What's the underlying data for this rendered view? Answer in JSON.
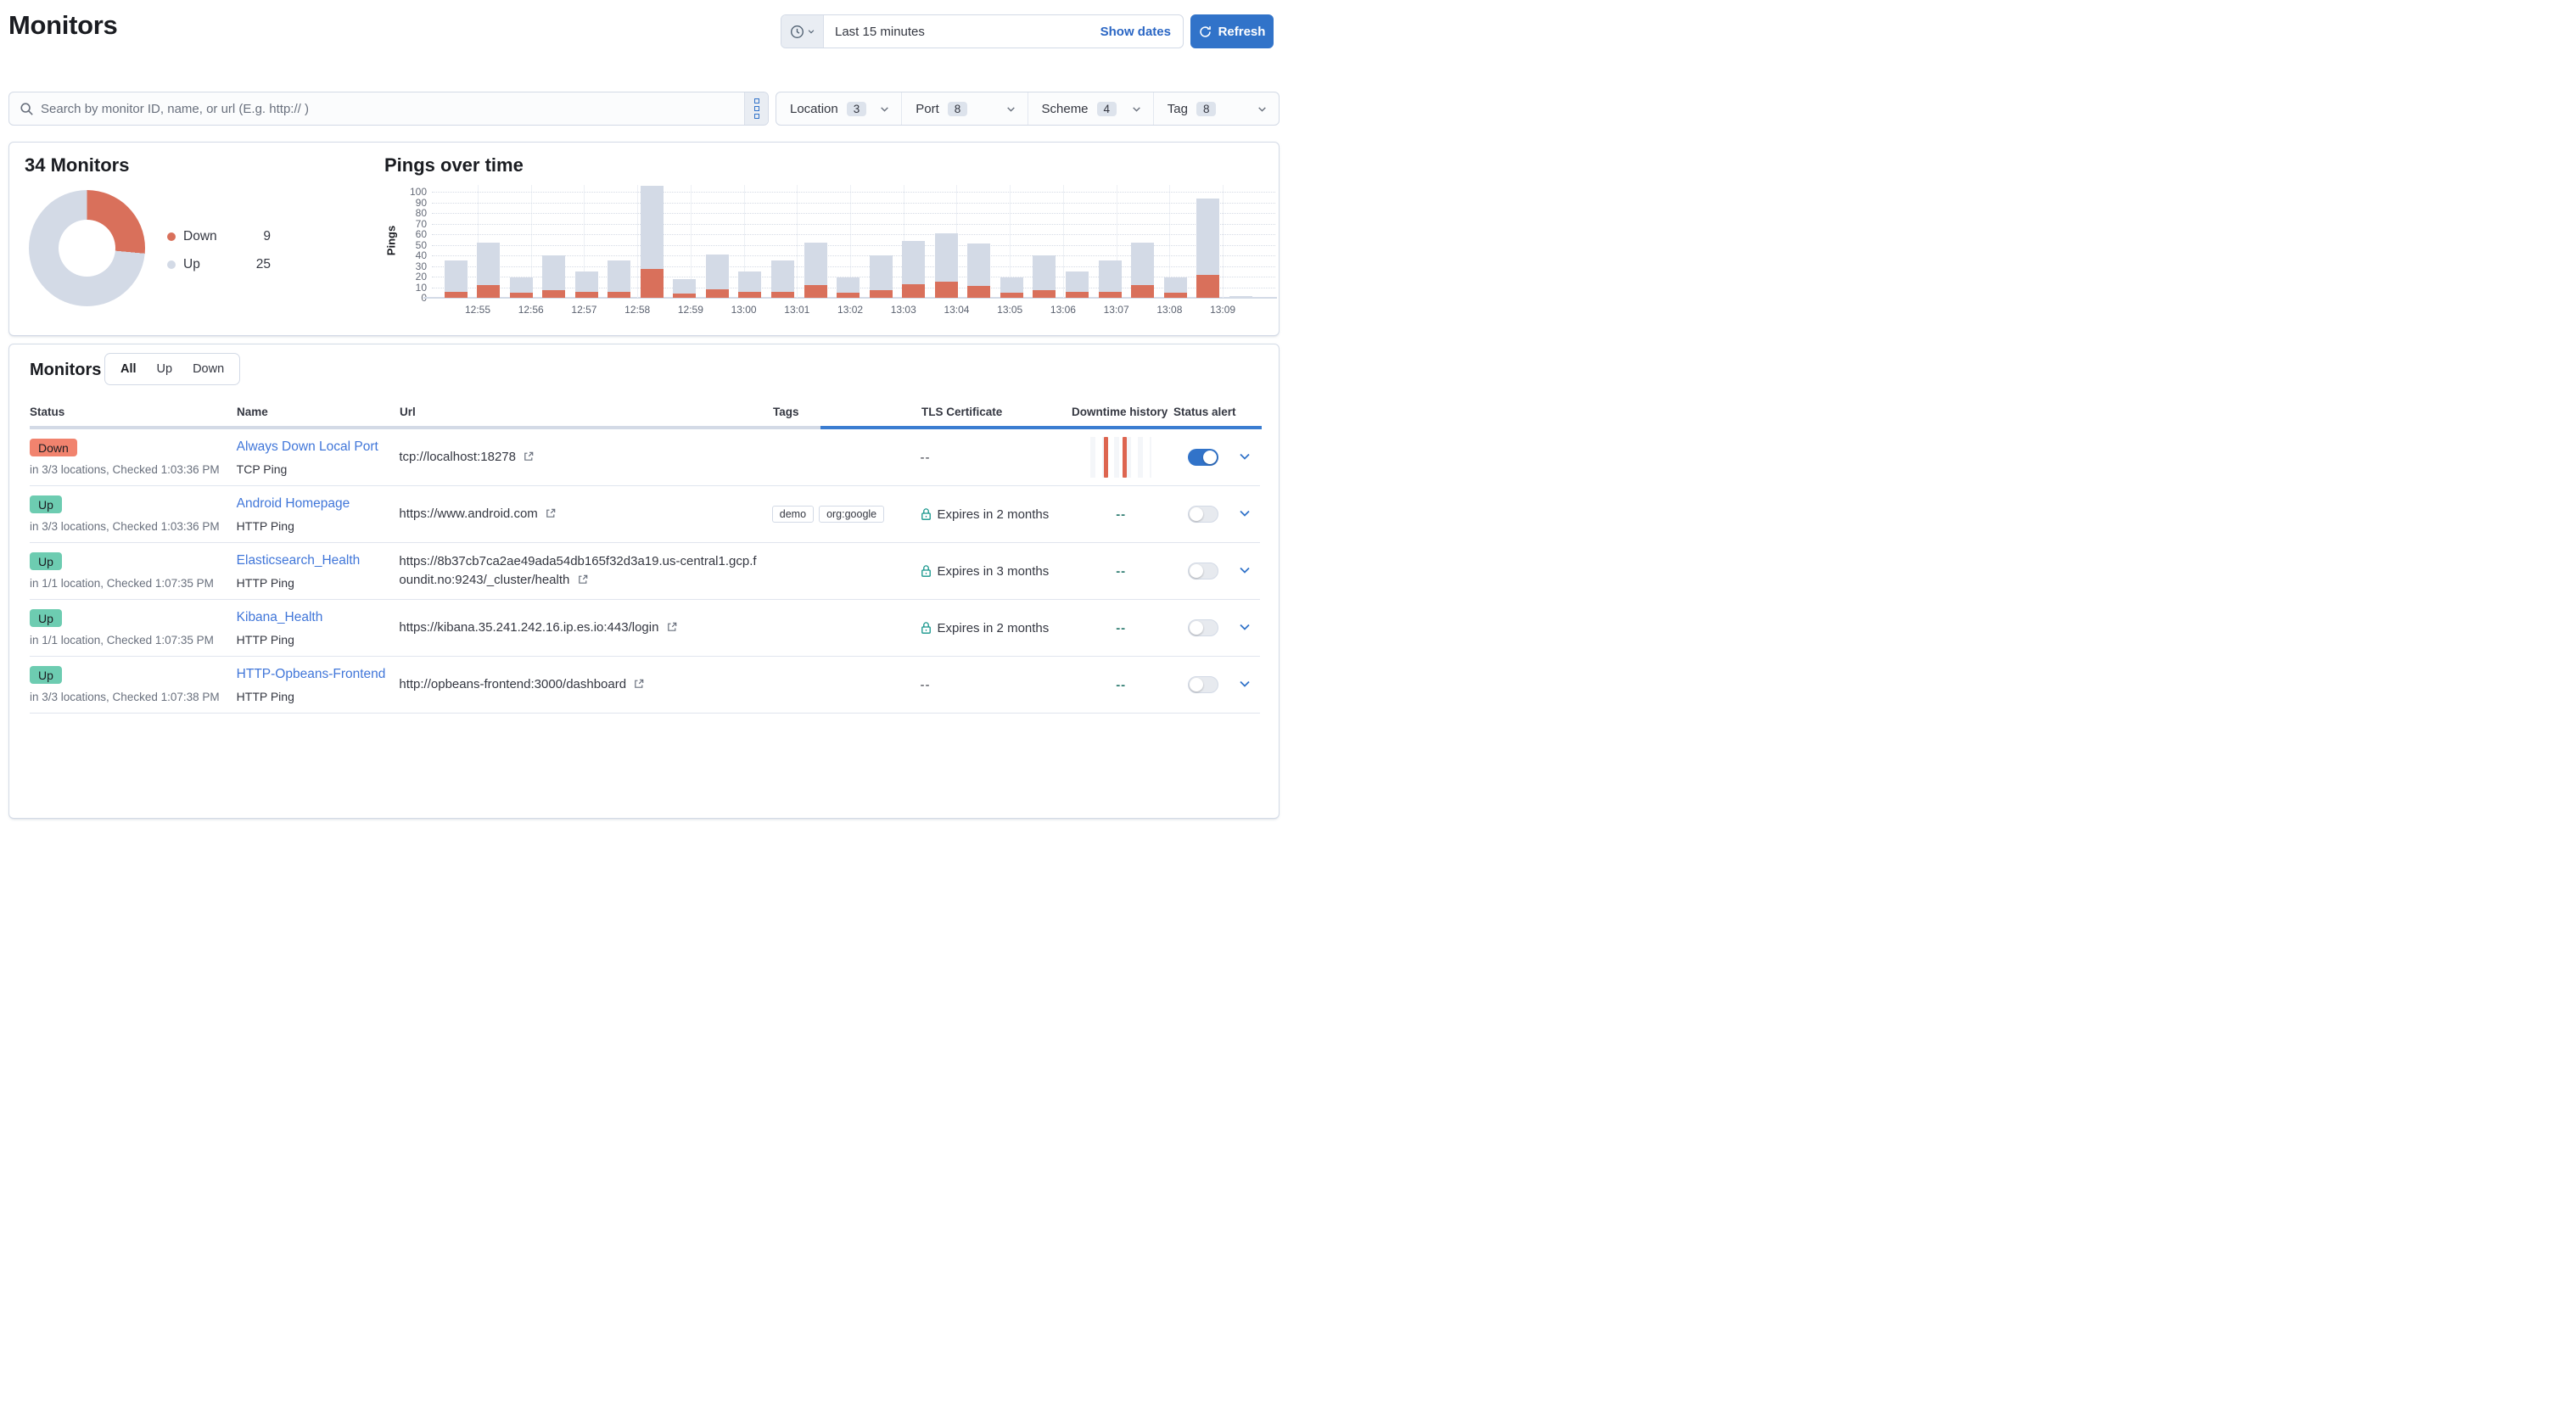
{
  "colors": {
    "down_accent": "#d9705b",
    "up_gray": "#d3dae6",
    "down_badge": "#f1836e",
    "up_badge": "#6dccb1",
    "primary_blue": "#3173c9",
    "link_blue": "#4076d9",
    "teal": "#12948a",
    "progress_blue": "#3b7dd1"
  },
  "header": {
    "title": "Monitors",
    "time_label": "Last 15 minutes",
    "show_dates": "Show dates",
    "refresh": "Refresh"
  },
  "search": {
    "placeholder": "Search by monitor ID, name, or url (E.g. http:// )"
  },
  "filters": [
    {
      "label": "Location",
      "count": "3"
    },
    {
      "label": "Port",
      "count": "8"
    },
    {
      "label": "Scheme",
      "count": "4"
    },
    {
      "label": "Tag",
      "count": "8"
    }
  ],
  "overview": {
    "title": "34 Monitors",
    "chart_title": "Pings over time"
  },
  "chart_data": [
    {
      "type": "pie",
      "donut": true,
      "title": "34 Monitors",
      "labels": [
        "Down",
        "Up"
      ],
      "values": [
        9,
        25
      ],
      "colors": [
        "#d9705b",
        "#d3dae6"
      ],
      "legend_position": "right"
    },
    {
      "type": "bar",
      "stacked": true,
      "title": "Pings over time",
      "xlabel": "",
      "ylabel": "Pings",
      "ylim": [
        0,
        100
      ],
      "ytick_step": 10,
      "grid": true,
      "x_tick_labels": [
        "12:55",
        "12:56",
        "12:57",
        "12:58",
        "12:59",
        "13:00",
        "13:01",
        "13:02",
        "13:03",
        "13:04",
        "13:05",
        "13:06",
        "13:07",
        "13:08",
        "13:09"
      ],
      "series": [
        {
          "name": "Down",
          "color": "#d9705b",
          "values": [
            6,
            12,
            5,
            7,
            6,
            6,
            27,
            4,
            8,
            6,
            6,
            12,
            5,
            7,
            13,
            15,
            11,
            5,
            7,
            6,
            6,
            12,
            5,
            22,
            0
          ]
        },
        {
          "name": "Up",
          "color": "#d3dae6",
          "values": [
            29,
            40,
            14,
            33,
            19,
            29,
            79,
            14,
            33,
            19,
            29,
            40,
            14,
            33,
            41,
            46,
            40,
            14,
            33,
            19,
            29,
            40,
            14,
            72,
            2
          ]
        }
      ]
    }
  ],
  "table": {
    "title": "Monitors",
    "tabs": [
      "All",
      "Up",
      "Down"
    ],
    "active_tab": "All",
    "columns": [
      "Status",
      "Name",
      "Url",
      "Tags",
      "TLS Certificate",
      "Downtime history",
      "Status alert"
    ],
    "rows": [
      {
        "status": "Down",
        "status_detail": "in 3/3 locations, Checked 1:03:36 PM",
        "name": "Always Down Local Port",
        "type": "TCP Ping",
        "url": "tcp://localhost:18278",
        "tags": [],
        "tls": "--",
        "tls_lock": false,
        "downtime": "sparkline",
        "alert_on": true
      },
      {
        "status": "Up",
        "status_detail": "in 3/3 locations, Checked 1:03:36 PM",
        "name": "Android Homepage",
        "type": "HTTP Ping",
        "url": "https://www.android.com",
        "tags": [
          "demo",
          "org:google"
        ],
        "tls": "Expires in 2 months",
        "tls_lock": true,
        "downtime": "--",
        "alert_on": false
      },
      {
        "status": "Up",
        "status_detail": "in 1/1 location, Checked 1:07:35 PM",
        "name": "Elasticsearch_Health",
        "type": "HTTP Ping",
        "url": "https://8b37cb7ca2ae49ada54db165f32d3a19.us-central1.gcp.foundit.no:9243/_cluster/health",
        "tags": [],
        "tls": "Expires in 3 months",
        "tls_lock": true,
        "downtime": "--",
        "alert_on": false
      },
      {
        "status": "Up",
        "status_detail": "in 1/1 location, Checked 1:07:35 PM",
        "name": "Kibana_Health",
        "type": "HTTP Ping",
        "url": "https://kibana.35.241.242.16.ip.es.io:443/login",
        "tags": [],
        "tls": "Expires in 2 months",
        "tls_lock": true,
        "downtime": "--",
        "alert_on": false
      },
      {
        "status": "Up",
        "status_detail": "in 3/3 locations, Checked 1:07:38 PM",
        "name": "HTTP-Opbeans-Frontend",
        "type": "HTTP Ping",
        "url": "http://opbeans-frontend:3000/dashboard",
        "tags": [],
        "tls": "--",
        "tls_lock": false,
        "downtime": "--",
        "alert_on": false
      }
    ]
  }
}
